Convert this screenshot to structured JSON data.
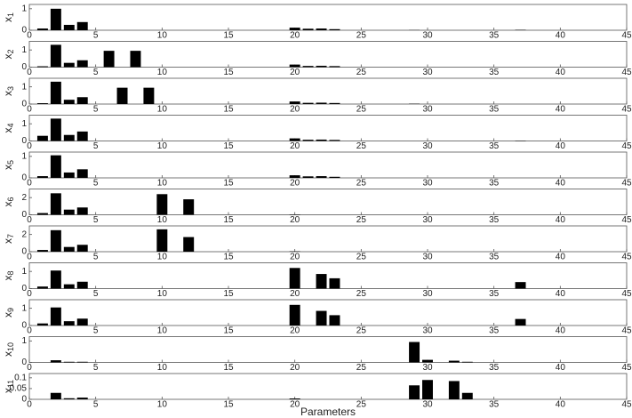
{
  "chart_data": [
    {
      "type": "bar",
      "ylabel": "x",
      "ylabel_sub": "1",
      "x": [
        1,
        2,
        3,
        4,
        20,
        21,
        22,
        23,
        29,
        37
      ],
      "values": [
        0.08,
        1.0,
        0.25,
        0.38,
        0.12,
        0.07,
        0.08,
        0.05,
        0.01,
        0.02
      ],
      "color": "#000000",
      "xlim": [
        0,
        45
      ],
      "xticks": [
        0,
        5,
        10,
        15,
        20,
        25,
        30,
        35,
        40,
        45
      ],
      "ylim": [
        0,
        1.2
      ],
      "yticks": [
        0,
        1
      ]
    },
    {
      "type": "bar",
      "ylabel": "x",
      "ylabel_sub": "2",
      "x": [
        1,
        2,
        3,
        4,
        6,
        8,
        20,
        21,
        22,
        23
      ],
      "values": [
        0.05,
        1.3,
        0.25,
        0.4,
        0.95,
        0.95,
        0.15,
        0.07,
        0.08,
        0.06
      ],
      "color": "#000000",
      "xlim": [
        0,
        45
      ],
      "xticks": [
        0,
        5,
        10,
        15,
        20,
        25,
        30,
        35,
        40,
        45
      ],
      "ylim": [
        0,
        1.5
      ],
      "yticks": [
        0,
        1
      ]
    },
    {
      "type": "bar",
      "ylabel": "x",
      "ylabel_sub": "3",
      "x": [
        1,
        2,
        3,
        4,
        7,
        9,
        20,
        21,
        22,
        23,
        29
      ],
      "values": [
        0.05,
        1.3,
        0.25,
        0.4,
        0.95,
        0.95,
        0.15,
        0.07,
        0.08,
        0.06,
        0.02
      ],
      "color": "#000000",
      "xlim": [
        0,
        45
      ],
      "xticks": [
        0,
        5,
        10,
        15,
        20,
        25,
        30,
        35,
        40,
        45
      ],
      "ylim": [
        0,
        1.5
      ],
      "yticks": [
        0,
        1
      ]
    },
    {
      "type": "bar",
      "ylabel": "x",
      "ylabel_sub": "4",
      "x": [
        1,
        2,
        3,
        4,
        20,
        21,
        22,
        23,
        37
      ],
      "values": [
        0.3,
        1.3,
        0.35,
        0.55,
        0.15,
        0.07,
        0.08,
        0.06,
        0.02
      ],
      "color": "#000000",
      "xlim": [
        0,
        45
      ],
      "xticks": [
        0,
        5,
        10,
        15,
        20,
        25,
        30,
        35,
        40,
        45
      ],
      "ylim": [
        0,
        1.5
      ],
      "yticks": [
        0,
        1
      ]
    },
    {
      "type": "bar",
      "ylabel": "x",
      "ylabel_sub": "5",
      "x": [
        1,
        2,
        3,
        4,
        20,
        21,
        22,
        23
      ],
      "values": [
        0.08,
        1.05,
        0.25,
        0.4,
        0.12,
        0.07,
        0.08,
        0.05
      ],
      "color": "#000000",
      "xlim": [
        0,
        45
      ],
      "xticks": [
        0,
        5,
        10,
        15,
        20,
        25,
        30,
        35,
        40,
        45
      ],
      "ylim": [
        0,
        1.2
      ],
      "yticks": [
        0,
        1
      ]
    },
    {
      "type": "bar",
      "ylabel": "x",
      "ylabel_sub": "6",
      "x": [
        1,
        2,
        3,
        4,
        10,
        12,
        20
      ],
      "values": [
        0.2,
        2.5,
        0.6,
        0.85,
        2.4,
        1.8,
        0.05
      ],
      "color": "#000000",
      "xlim": [
        0,
        45
      ],
      "xticks": [
        0,
        5,
        10,
        15,
        20,
        25,
        30,
        35,
        40,
        45
      ],
      "ylim": [
        0,
        3
      ],
      "yticks": [
        0,
        2
      ]
    },
    {
      "type": "bar",
      "ylabel": "x",
      "ylabel_sub": "7",
      "x": [
        1,
        2,
        3,
        4,
        10,
        12,
        20
      ],
      "values": [
        0.2,
        2.5,
        0.55,
        0.8,
        2.6,
        1.7,
        0.05
      ],
      "color": "#000000",
      "xlim": [
        0,
        45
      ],
      "xticks": [
        0,
        5,
        10,
        15,
        20,
        25,
        30,
        35,
        40,
        45
      ],
      "ylim": [
        0,
        3
      ],
      "yticks": [
        0,
        2
      ]
    },
    {
      "type": "bar",
      "ylabel": "x",
      "ylabel_sub": "8",
      "x": [
        1,
        2,
        3,
        4,
        20,
        22,
        23,
        37
      ],
      "values": [
        0.12,
        1.05,
        0.25,
        0.4,
        1.2,
        0.85,
        0.6,
        0.38
      ],
      "color": "#000000",
      "xlim": [
        0,
        45
      ],
      "xticks": [
        0,
        5,
        10,
        15,
        20,
        25,
        30,
        35,
        40,
        45
      ],
      "ylim": [
        0,
        1.5
      ],
      "yticks": [
        0,
        1
      ]
    },
    {
      "type": "bar",
      "ylabel": "x",
      "ylabel_sub": "9",
      "x": [
        1,
        2,
        3,
        4,
        20,
        22,
        23,
        37
      ],
      "values": [
        0.12,
        1.05,
        0.25,
        0.4,
        1.2,
        0.85,
        0.6,
        0.38
      ],
      "color": "#000000",
      "xlim": [
        0,
        45
      ],
      "xticks": [
        0,
        5,
        10,
        15,
        20,
        25,
        30,
        35,
        40,
        45
      ],
      "ylim": [
        0,
        1.5
      ],
      "yticks": [
        0,
        1
      ]
    },
    {
      "type": "bar",
      "ylabel": "x",
      "ylabel_sub": "10",
      "x": [
        2,
        3,
        4,
        29,
        30,
        32,
        33
      ],
      "values": [
        0.1,
        0.03,
        0.03,
        0.95,
        0.12,
        0.08,
        0.03
      ],
      "color": "#000000",
      "xlim": [
        0,
        45
      ],
      "xticks": [
        0,
        5,
        10,
        15,
        20,
        25,
        30,
        35,
        40,
        45
      ],
      "ylim": [
        0,
        1.2
      ],
      "yticks": [
        0,
        1
      ]
    },
    {
      "type": "bar",
      "ylabel": "x",
      "ylabel_sub": "11",
      "xlabel": "Parameters",
      "x": [
        2,
        3,
        4,
        20,
        29,
        30,
        32,
        33
      ],
      "values": [
        0.03,
        0.005,
        0.008,
        0.004,
        0.065,
        0.09,
        0.085,
        0.03
      ],
      "color": "#000000",
      "xlim": [
        0,
        45
      ],
      "xticks": [
        0,
        5,
        10,
        15,
        20,
        25,
        30,
        35,
        40,
        45
      ],
      "ylim": [
        0,
        0.12
      ],
      "yticks": [
        0,
        0.05,
        0.1
      ]
    }
  ]
}
